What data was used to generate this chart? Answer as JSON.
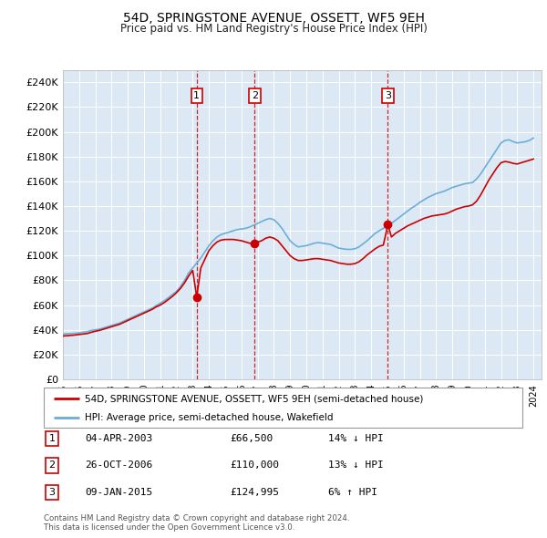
{
  "title": "54D, SPRINGSTONE AVENUE, OSSETT, WF5 9EH",
  "subtitle": "Price paid vs. HM Land Registry's House Price Index (HPI)",
  "bg_color": "#dce9f5",
  "hpi_color": "#6baed6",
  "price_color": "#cc0000",
  "ylim": [
    0,
    250000
  ],
  "yticks": [
    0,
    20000,
    40000,
    60000,
    80000,
    100000,
    120000,
    140000,
    160000,
    180000,
    200000,
    220000,
    240000
  ],
  "transactions": [
    {
      "num": 1,
      "date": "04-APR-2003",
      "price": 66500,
      "pct": "14%",
      "dir": "↓"
    },
    {
      "num": 2,
      "date": "26-OCT-2006",
      "price": 110000,
      "pct": "13%",
      "dir": "↓"
    },
    {
      "num": 3,
      "date": "09-JAN-2015",
      "price": 124995,
      "pct": "6%",
      "dir": "↑"
    }
  ],
  "vline_dates": [
    2003.25,
    2006.82,
    2015.03
  ],
  "legend_label_red": "54D, SPRINGSTONE AVENUE, OSSETT, WF5 9EH (semi-detached house)",
  "legend_label_blue": "HPI: Average price, semi-detached house, Wakefield",
  "footer": "Contains HM Land Registry data © Crown copyright and database right 2024.\nThis data is licensed under the Open Government Licence v3.0.",
  "hpi_data_x": [
    1995,
    1995.25,
    1995.5,
    1995.75,
    1996,
    1996.25,
    1996.5,
    1996.75,
    1997,
    1997.25,
    1997.5,
    1997.75,
    1998,
    1998.25,
    1998.5,
    1998.75,
    1999,
    1999.25,
    1999.5,
    1999.75,
    2000,
    2000.25,
    2000.5,
    2000.75,
    2001,
    2001.25,
    2001.5,
    2001.75,
    2002,
    2002.25,
    2002.5,
    2002.75,
    2003,
    2003.25,
    2003.5,
    2003.75,
    2004,
    2004.25,
    2004.5,
    2004.75,
    2005,
    2005.25,
    2005.5,
    2005.75,
    2006,
    2006.25,
    2006.5,
    2006.75,
    2007,
    2007.25,
    2007.5,
    2007.75,
    2008,
    2008.25,
    2008.5,
    2008.75,
    2009,
    2009.25,
    2009.5,
    2009.75,
    2010,
    2010.25,
    2010.5,
    2010.75,
    2011,
    2011.25,
    2011.5,
    2011.75,
    2012,
    2012.25,
    2012.5,
    2012.75,
    2013,
    2013.25,
    2013.5,
    2013.75,
    2014,
    2014.25,
    2014.5,
    2014.75,
    2015,
    2015.25,
    2015.5,
    2015.75,
    2016,
    2016.25,
    2016.5,
    2016.75,
    2017,
    2017.25,
    2017.5,
    2017.75,
    2018,
    2018.25,
    2018.5,
    2018.75,
    2019,
    2019.25,
    2019.5,
    2019.75,
    2020,
    2020.25,
    2020.5,
    2020.75,
    2021,
    2021.25,
    2021.5,
    2021.75,
    2022,
    2022.25,
    2022.5,
    2022.75,
    2023,
    2023.25,
    2023.5,
    2023.75,
    2024
  ],
  "hpi_data_y": [
    36500,
    36800,
    37000,
    37200,
    37500,
    38000,
    38500,
    39500,
    40000,
    40500,
    41500,
    42500,
    43500,
    44500,
    45500,
    47000,
    48500,
    50000,
    51500,
    53000,
    54500,
    56000,
    57500,
    59500,
    61500,
    63500,
    66000,
    68500,
    71000,
    75000,
    80000,
    86000,
    90000,
    94000,
    98000,
    103000,
    108000,
    112000,
    115000,
    117000,
    118000,
    119000,
    120000,
    121000,
    121500,
    122000,
    123000,
    124500,
    126000,
    127500,
    129000,
    130000,
    129000,
    126000,
    122000,
    117000,
    112000,
    109000,
    107000,
    107500,
    108000,
    109000,
    110000,
    110500,
    110000,
    109500,
    109000,
    107500,
    106000,
    105500,
    105000,
    105000,
    105500,
    107000,
    109500,
    112000,
    115000,
    118000,
    120000,
    122000,
    124000,
    126000,
    128500,
    131000,
    133500,
    136000,
    138500,
    140500,
    143000,
    145000,
    147000,
    148500,
    150000,
    151000,
    152000,
    153500,
    155000,
    156000,
    157000,
    158000,
    158500,
    159000,
    162000,
    166000,
    171000,
    176000,
    181000,
    186000,
    191000,
    193000,
    193500,
    192000,
    191000,
    191500,
    192000,
    193000,
    195000
  ],
  "price_data_x": [
    1995,
    1995.25,
    1995.5,
    1995.75,
    1996,
    1996.25,
    1996.5,
    1996.75,
    1997,
    1997.25,
    1997.5,
    1997.75,
    1998,
    1998.25,
    1998.5,
    1998.75,
    1999,
    1999.25,
    1999.5,
    1999.75,
    2000,
    2000.25,
    2000.5,
    2000.75,
    2001,
    2001.25,
    2001.5,
    2001.75,
    2002,
    2002.25,
    2002.5,
    2002.75,
    2003,
    2003.25,
    2003.5,
    2003.75,
    2004,
    2004.25,
    2004.5,
    2004.75,
    2005,
    2005.25,
    2005.5,
    2005.75,
    2006,
    2006.25,
    2006.5,
    2006.75,
    2006.82,
    2007.25,
    2007.5,
    2007.75,
    2008,
    2008.25,
    2008.5,
    2008.75,
    2009,
    2009.25,
    2009.5,
    2009.75,
    2010,
    2010.25,
    2010.5,
    2010.75,
    2011,
    2011.25,
    2011.5,
    2011.75,
    2012,
    2012.25,
    2012.5,
    2012.75,
    2013,
    2013.25,
    2013.5,
    2013.75,
    2014,
    2014.25,
    2014.5,
    2014.75,
    2015.03,
    2015.25,
    2015.5,
    2015.75,
    2016,
    2016.25,
    2016.5,
    2016.75,
    2017,
    2017.25,
    2017.5,
    2017.75,
    2018,
    2018.25,
    2018.5,
    2018.75,
    2019,
    2019.25,
    2019.5,
    2019.75,
    2020,
    2020.25,
    2020.5,
    2020.75,
    2021,
    2021.25,
    2021.5,
    2021.75,
    2022,
    2022.25,
    2022.5,
    2022.75,
    2023,
    2023.25,
    2023.5,
    2023.75,
    2024
  ],
  "price_data_y": [
    35000,
    35200,
    35500,
    35800,
    36200,
    36600,
    37000,
    38000,
    38800,
    39500,
    40500,
    41500,
    42500,
    43500,
    44500,
    46000,
    47500,
    49000,
    50500,
    52000,
    53500,
    55000,
    56500,
    58500,
    60000,
    62000,
    64500,
    67000,
    70000,
    73500,
    78000,
    83500,
    88000,
    66500,
    90000,
    97000,
    104000,
    108000,
    111000,
    112500,
    113000,
    113000,
    113000,
    112500,
    112000,
    111000,
    110000,
    110000,
    110000,
    112000,
    114000,
    115000,
    114000,
    112000,
    108000,
    104000,
    100000,
    97500,
    96000,
    96000,
    96500,
    97000,
    97500,
    97500,
    97000,
    96500,
    96000,
    95000,
    94000,
    93500,
    93000,
    93000,
    93500,
    95000,
    97500,
    100500,
    103000,
    105500,
    107500,
    108500,
    124995,
    115000,
    118000,
    120000,
    122000,
    124000,
    125500,
    127000,
    128500,
    130000,
    131000,
    132000,
    132500,
    133000,
    133500,
    134500,
    136000,
    137500,
    138500,
    139500,
    140000,
    141000,
    144000,
    149000,
    155000,
    161000,
    166000,
    171000,
    175000,
    176000,
    175500,
    174500,
    174000,
    175000,
    176000,
    177000,
    178000
  ]
}
